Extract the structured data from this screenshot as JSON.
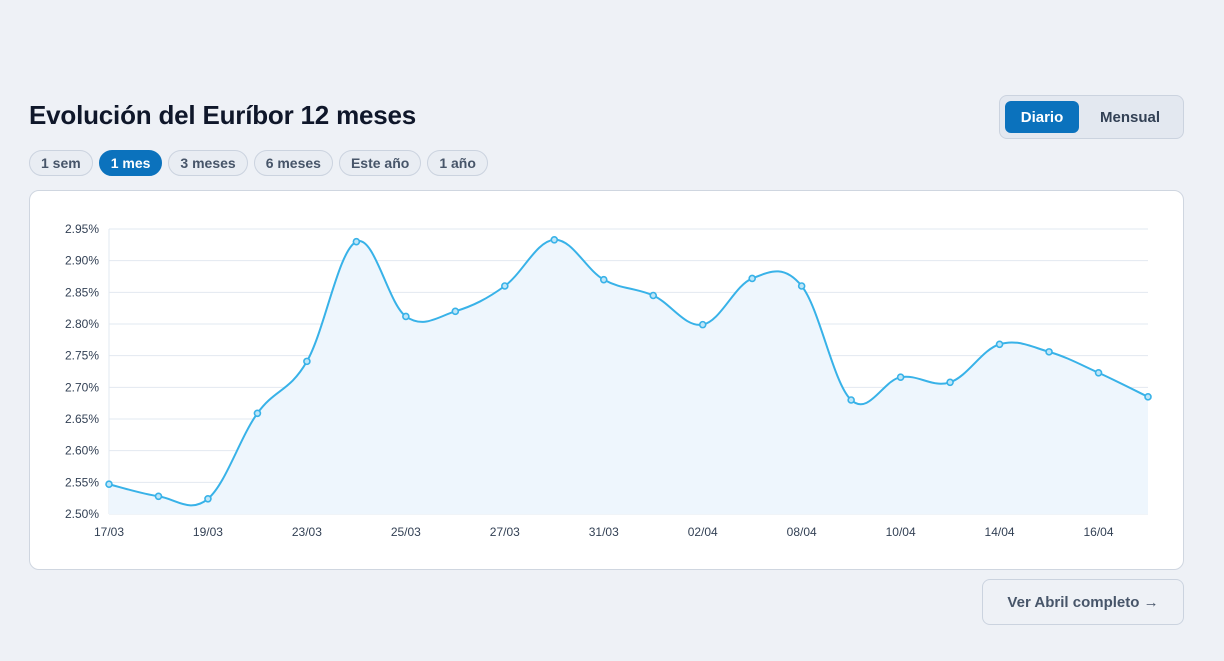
{
  "header": {
    "title": "Evolución del Euríbor 12 meses"
  },
  "view_toggle": {
    "options": [
      "Diario",
      "Mensual"
    ],
    "selected": "Diario"
  },
  "range_filters": {
    "options": [
      "1 sem",
      "1 mes",
      "3 meses",
      "6 meses",
      "Este año",
      "1 año"
    ],
    "selected": "1 mes"
  },
  "footer": {
    "more_label": "Ver Abril completo →"
  },
  "colors": {
    "accent": "#0b72bd",
    "line": "#38b2e8",
    "area": "#eef6fd",
    "grid": "#e2e8f0"
  },
  "chart_data": {
    "type": "area",
    "x_tick_labels": [
      "17/03",
      "19/03",
      "23/03",
      "25/03",
      "27/03",
      "31/03",
      "02/04",
      "08/04",
      "10/04",
      "14/04",
      "16/04"
    ],
    "x_tick_indices": [
      0,
      2,
      4,
      6,
      8,
      10,
      12,
      14,
      16,
      18,
      20
    ],
    "values": [
      2.547,
      2.528,
      2.524,
      2.659,
      2.741,
      2.93,
      2.812,
      2.82,
      2.86,
      2.933,
      2.87,
      2.845,
      2.799,
      2.872,
      2.86,
      2.68,
      2.716,
      2.708,
      2.768,
      2.756,
      2.723,
      2.685
    ],
    "ylim": [
      2.5,
      2.95
    ],
    "y_ticks": [
      "2.50%",
      "2.55%",
      "2.60%",
      "2.65%",
      "2.70%",
      "2.75%",
      "2.80%",
      "2.85%",
      "2.90%",
      "2.95%"
    ],
    "y_tick_values": [
      2.5,
      2.55,
      2.6,
      2.65,
      2.7,
      2.75,
      2.8,
      2.85,
      2.9,
      2.95
    ],
    "grid": true,
    "legend": "none"
  }
}
